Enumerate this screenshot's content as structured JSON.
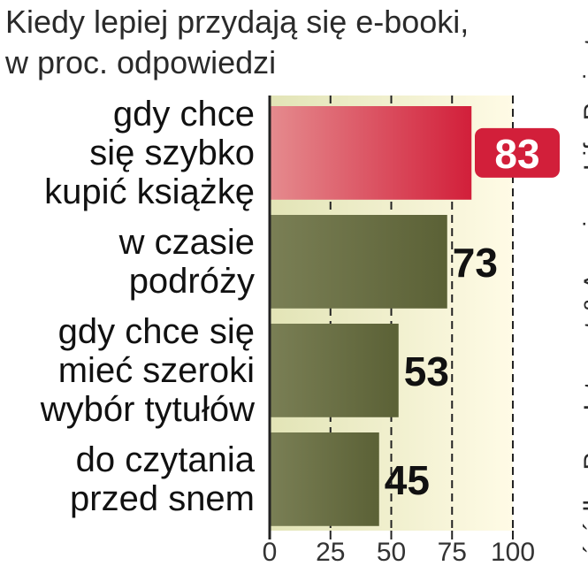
{
  "title_lines": [
    "Kiedy lepiej przydają  się e-booki,",
    "w proc. odpowiedzi"
  ],
  "source": "źródło: Pew Internet & American Life Project",
  "colors": {
    "highlight_bar": "#d9404a",
    "bar": "#5b6136",
    "highlight_label_bg": "#d21f3a",
    "background_gradient": [
      "#e2e4b6",
      "#fffbe6"
    ]
  },
  "chart_data": {
    "type": "bar",
    "orientation": "horizontal",
    "categories": [
      [
        "gdy chce",
        "się szybko",
        "kupić książkę"
      ],
      [
        "w czasie",
        "podróży"
      ],
      [
        "gdy chce się",
        "mieć szeroki",
        "wybór tytułów"
      ],
      [
        "do czytania",
        "przed snem"
      ]
    ],
    "values": [
      83,
      73,
      53,
      45
    ],
    "value_labels": [
      "83",
      "73",
      "53",
      "45"
    ],
    "highlight_index": 0,
    "xlim": [
      0,
      100
    ],
    "x_ticks": [
      0,
      25,
      50,
      75,
      100
    ],
    "x_tick_labels": [
      "0",
      "25",
      "50",
      "75",
      "100"
    ],
    "grid": "vertical dashed"
  }
}
